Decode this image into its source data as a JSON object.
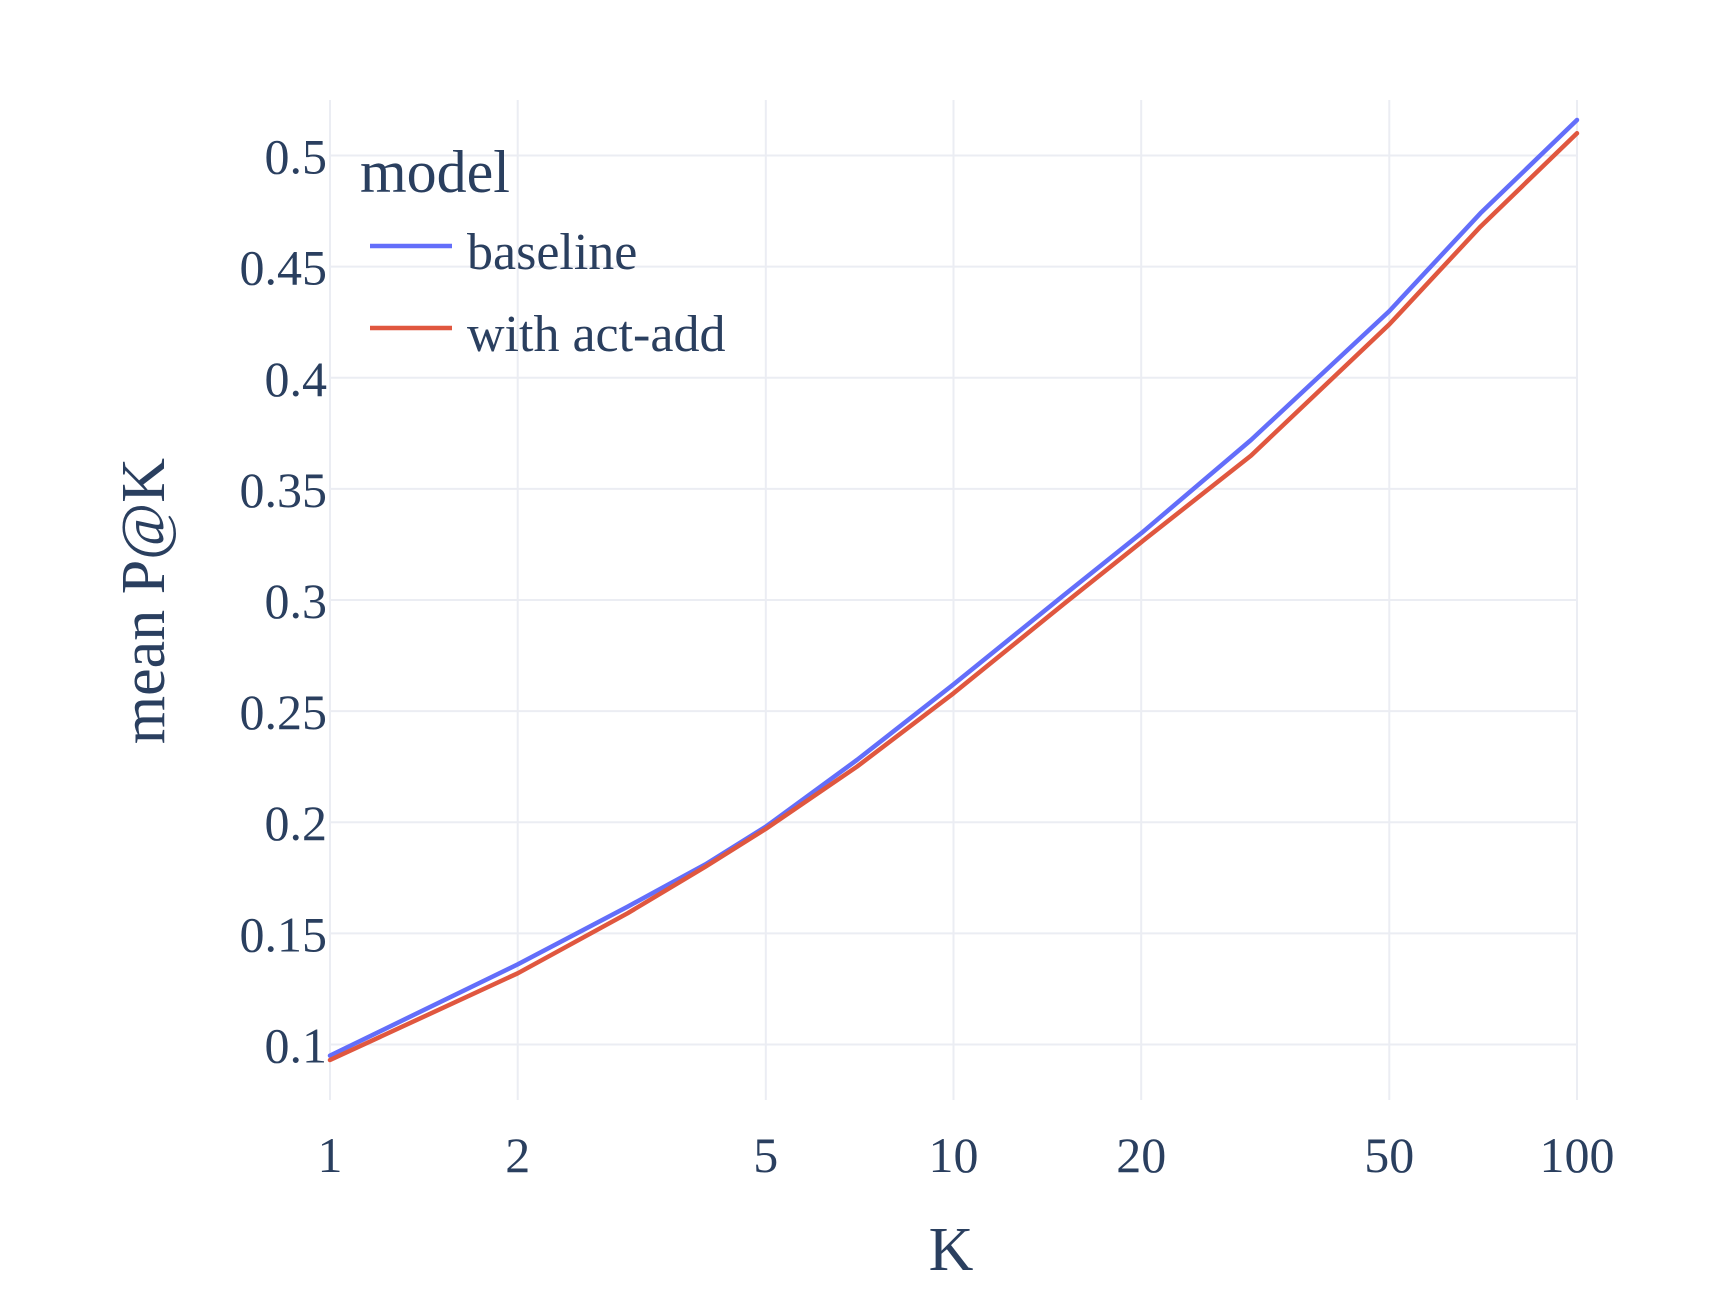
{
  "chart_data": {
    "type": "line",
    "title": "",
    "xlabel": "K",
    "ylabel": "mean P@K",
    "x_scale": "log",
    "xlim": [
      1,
      100
    ],
    "ylim": [
      0.075,
      0.525
    ],
    "x_ticks": [
      1,
      2,
      5,
      10,
      20,
      50,
      100
    ],
    "x_tick_labels": [
      "1",
      "2",
      "5",
      "10",
      "20",
      "50",
      "100"
    ],
    "y_ticks": [
      0.1,
      0.15,
      0.2,
      0.25,
      0.3,
      0.35,
      0.4,
      0.45,
      0.5
    ],
    "y_tick_labels": [
      "0.1",
      "0.15",
      "0.2",
      "0.25",
      "0.3",
      "0.35",
      "0.4",
      "0.45",
      "0.5"
    ],
    "grid": true,
    "legend": {
      "title": "model",
      "placement": "top-left"
    },
    "series": [
      {
        "name": "baseline",
        "color": "#636efa",
        "x": [
          1,
          2,
          3,
          4,
          5,
          7,
          10,
          15,
          20,
          30,
          50,
          70,
          100
        ],
        "y": [
          0.095,
          0.136,
          0.162,
          0.181,
          0.198,
          0.228,
          0.262,
          0.302,
          0.33,
          0.372,
          0.43,
          0.474,
          0.516
        ]
      },
      {
        "name": "with act-add",
        "color": "#e0573f",
        "x": [
          1,
          2,
          3,
          4,
          5,
          7,
          10,
          15,
          20,
          30,
          50,
          70,
          100
        ],
        "y": [
          0.093,
          0.132,
          0.159,
          0.18,
          0.197,
          0.225,
          0.258,
          0.298,
          0.326,
          0.365,
          0.424,
          0.468,
          0.51
        ]
      }
    ]
  }
}
